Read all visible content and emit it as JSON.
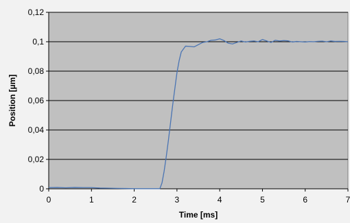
{
  "chart_data": {
    "type": "line",
    "xlabel": "Time [ms]",
    "ylabel": "Position [µm]",
    "xlim": [
      0,
      7
    ],
    "ylim": [
      0,
      0.12
    ],
    "x_ticks": [
      0,
      1,
      2,
      3,
      4,
      5,
      6,
      7
    ],
    "x_tick_labels": [
      "0",
      "1",
      "2",
      "3",
      "4",
      "5",
      "6",
      "7"
    ],
    "y_ticks": [
      0,
      0.02,
      0.04,
      0.06,
      0.08,
      0.1,
      0.12
    ],
    "y_tick_labels": [
      "0",
      "0,02",
      "0,04",
      "0,06",
      "0,08",
      "0,1",
      "0,12"
    ],
    "grid": "horizontal",
    "legend": "none",
    "colors": {
      "line": "#4a74b3",
      "plot_background": "#c0c0c0",
      "gridline": "#000000",
      "page_background": "#f2f2f2"
    },
    "series": [
      {
        "x": [
          0,
          0.2,
          0.4,
          0.6,
          0.8,
          1.0,
          1.2,
          1.4,
          1.6,
          1.8,
          2.0,
          2.2,
          2.4,
          2.6,
          2.65,
          2.7,
          2.75,
          2.8,
          2.85,
          2.9,
          2.95,
          3.0,
          3.05,
          3.1,
          3.15,
          3.2,
          3.3,
          3.4,
          3.5,
          3.6,
          3.7,
          3.8,
          3.9,
          4.0,
          4.1,
          4.2,
          4.3,
          4.4,
          4.5,
          4.6,
          4.7,
          4.8,
          4.9,
          5.0,
          5.1,
          5.2,
          5.3,
          5.4,
          5.5,
          5.6,
          5.7,
          5.8,
          5.9,
          6.0,
          6.1,
          6.2,
          6.3,
          6.4,
          6.5,
          6.6,
          6.7,
          6.8,
          6.9,
          7.0
        ],
        "y": [
          0.0008,
          0.0009,
          0.0007,
          0.0009,
          0.0008,
          0.0008,
          0.0005,
          0.0004,
          0.0003,
          0.0002,
          0.0001,
          0.0001,
          0.0001,
          0.0001,
          0.004,
          0.012,
          0.022,
          0.033,
          0.045,
          0.057,
          0.068,
          0.079,
          0.087,
          0.093,
          0.095,
          0.097,
          0.0968,
          0.0965,
          0.098,
          0.0995,
          0.1,
          0.101,
          0.1012,
          0.102,
          0.1008,
          0.099,
          0.0985,
          0.0995,
          0.1005,
          0.0998,
          0.1003,
          0.1005,
          0.1,
          0.1015,
          0.1005,
          0.0995,
          0.101,
          0.1005,
          0.1008,
          0.1006,
          0.0998,
          0.1002,
          0.1,
          0.0998,
          0.1001,
          0.1,
          0.1003,
          0.1004,
          0.1,
          0.1005,
          0.1002,
          0.1003,
          0.1002,
          0.1
        ]
      }
    ]
  }
}
